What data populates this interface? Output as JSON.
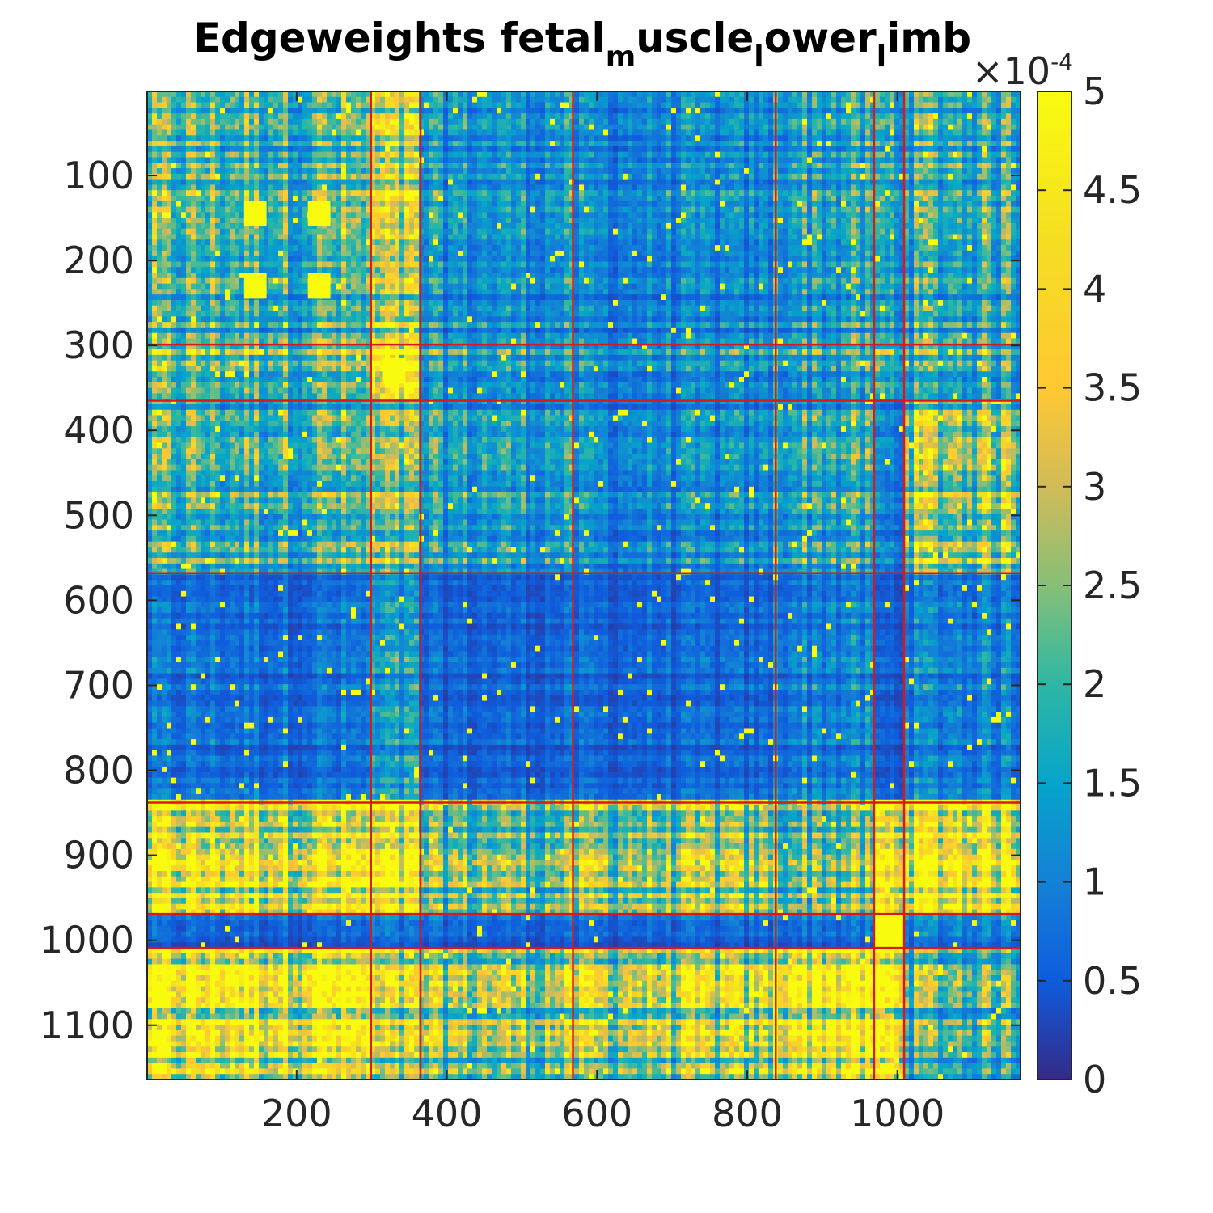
{
  "chart_data": {
    "type": "heatmap",
    "title": {
      "parts": [
        {
          "text": "Edgeweights fetal",
          "sub": false
        },
        {
          "text": "m",
          "sub": true
        },
        {
          "text": "uscle",
          "sub": false
        },
        {
          "text": "l",
          "sub": true
        },
        {
          "text": "ower",
          "sub": false
        },
        {
          "text": "l",
          "sub": true
        },
        {
          "text": "imb",
          "sub": false
        }
      ]
    },
    "xlabel": "",
    "ylabel": "",
    "n": 1164,
    "xlim": [
      1,
      1164
    ],
    "ylim": [
      1,
      1164
    ],
    "y_reversed": true,
    "x_ticks": [
      200,
      400,
      600,
      800,
      1000
    ],
    "x_tick_labels": [
      "200",
      "400",
      "600",
      "800",
      "1000"
    ],
    "y_ticks": [
      100,
      200,
      300,
      400,
      500,
      600,
      700,
      800,
      900,
      1000,
      1100
    ],
    "y_tick_labels": [
      "100",
      "200",
      "300",
      "400",
      "500",
      "600",
      "700",
      "800",
      "900",
      "1000",
      "1100"
    ],
    "group_boundaries": [
      299,
      365,
      568,
      838,
      969,
      1009
    ],
    "boundary_color": "#d7191c",
    "colorbar": {
      "min": 0,
      "max": 5,
      "ticks": [
        0,
        0.5,
        1,
        1.5,
        2,
        2.5,
        3,
        3.5,
        4,
        4.5,
        5
      ],
      "tick_labels": [
        "0",
        "0.5",
        "1",
        "1.5",
        "2",
        "2.5",
        "3",
        "3.5",
        "4",
        "4.5",
        "5"
      ],
      "multiplier_prefix": "×10",
      "multiplier_exponent": "-4",
      "colormap": "parula"
    },
    "block_intensity": [
      [
        0.4,
        0.55,
        0.25,
        0.2,
        0.3,
        0.3,
        0.35
      ],
      [
        0.5,
        0.9,
        0.3,
        0.25,
        0.35,
        0.4,
        0.4
      ],
      [
        0.4,
        0.45,
        0.3,
        0.22,
        0.35,
        0.2,
        0.55
      ],
      [
        0.15,
        0.25,
        0.12,
        0.12,
        0.2,
        0.1,
        0.2
      ],
      [
        0.8,
        0.8,
        0.5,
        0.55,
        0.5,
        0.9,
        0.9
      ],
      [
        0.12,
        0.15,
        0.12,
        0.12,
        0.15,
        0.95,
        0.2
      ],
      [
        0.8,
        0.55,
        0.5,
        0.55,
        0.85,
        0.85,
        0.4
      ]
    ],
    "bright_blocks": [
      {
        "x": [
          130,
          160
        ],
        "y": [
          130,
          160
        ]
      },
      {
        "x": [
          215,
          245
        ],
        "y": [
          130,
          160
        ]
      },
      {
        "x": [
          130,
          160
        ],
        "y": [
          215,
          245
        ]
      },
      {
        "x": [
          215,
          245
        ],
        "y": [
          215,
          245
        ]
      },
      {
        "x": [
          315,
          345
        ],
        "y": [
          315,
          345
        ]
      },
      {
        "x": [
          970,
          1009
        ],
        "y": [
          970,
          1009
        ]
      }
    ]
  }
}
